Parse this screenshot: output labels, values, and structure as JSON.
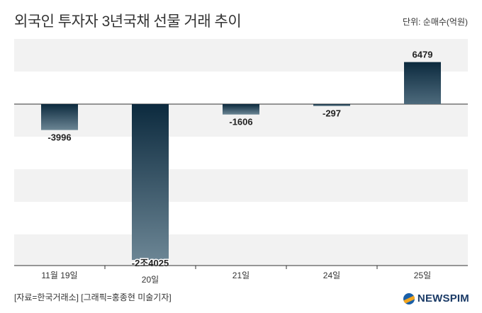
{
  "header": {
    "title": "외국인 투자자 3년국채 선물 거래 추이",
    "unit": "단위: 순매수(억원)"
  },
  "footer": {
    "source": "[자료=한국거래소] [그래픽=홍종현 미술기자]",
    "logo": "NEWSPIM"
  },
  "chart_data": {
    "type": "bar",
    "categories": [
      "11월 19일",
      "20일",
      "21일",
      "24일",
      "25일"
    ],
    "values": [
      -3996,
      -24025,
      -1606,
      -297,
      6479
    ],
    "value_labels": [
      "-3996",
      "-2조4025",
      "-1606",
      "-297",
      "6479"
    ],
    "title": "외국인 투자자 3년국채 선물 거래 추이",
    "ylim": [
      -24500,
      9500
    ],
    "grid": "alternating horizontal bands",
    "colors": {
      "bar_top": "#0c2a3e",
      "bar_bottom": "#6b8594",
      "band": "#f2f2f2",
      "axis": "#333333"
    }
  }
}
